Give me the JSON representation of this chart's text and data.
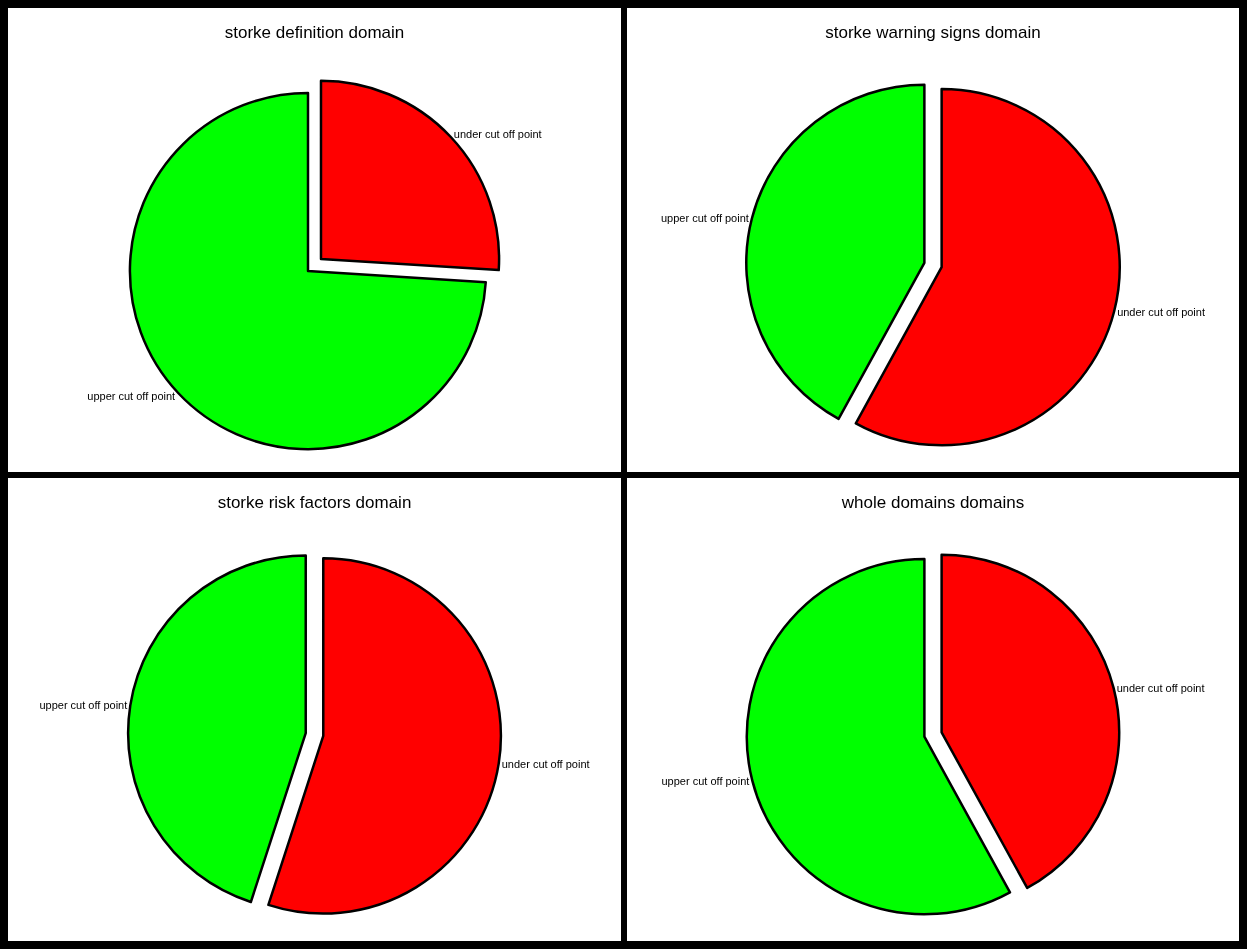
{
  "chart_data": [
    {
      "type": "pie",
      "title": "storke definition domain",
      "categories": [
        "under cut off point",
        "upper cut off point"
      ],
      "values": [
        26,
        74
      ],
      "colors": [
        "#ff0000",
        "#00ff00"
      ],
      "legend": false
    },
    {
      "type": "pie",
      "title": "storke warning signs domain",
      "categories": [
        "under cut off point",
        "upper cut off point"
      ],
      "values": [
        58,
        42
      ],
      "colors": [
        "#ff0000",
        "#00ff00"
      ],
      "legend": false
    },
    {
      "type": "pie",
      "title": "storke risk factors domain",
      "categories": [
        "under cut off point",
        "upper cut off point"
      ],
      "values": [
        55,
        45
      ],
      "colors": [
        "#ff0000",
        "#00ff00"
      ],
      "legend": false
    },
    {
      "type": "pie",
      "title": "whole domains domains",
      "categories": [
        "under cut off point",
        "upper cut off point"
      ],
      "values": [
        42,
        58
      ],
      "colors": [
        "#ff0000",
        "#00ff00"
      ],
      "legend": false
    }
  ]
}
